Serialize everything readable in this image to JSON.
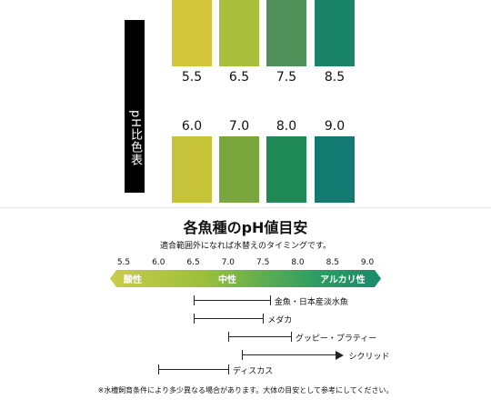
{
  "ph_chart": {
    "title": "pH比色表",
    "top_row": [
      {
        "label": "5.5",
        "color": "#d4c63a"
      },
      {
        "label": "6.5",
        "color": "#a9bf3b"
      },
      {
        "label": "7.5",
        "color": "#4f9058"
      },
      {
        "label": "8.5",
        "color": "#1a8468"
      }
    ],
    "bottom_row": [
      {
        "label": "6.0",
        "color": "#c6c23a"
      },
      {
        "label": "7.0",
        "color": "#7aa63e"
      },
      {
        "label": "8.0",
        "color": "#1f8a55"
      },
      {
        "label": "9.0",
        "color": "#137a72"
      }
    ]
  },
  "fish_section": {
    "title": "各魚種のpH値目安",
    "subtitle": "適合範囲外になれば水替えのタイミングです。",
    "scale": {
      "ticks": [
        "5.5",
        "6.0",
        "6.5",
        "7.0",
        "7.5",
        "8.0",
        "8.5",
        "9.0"
      ],
      "labels": {
        "acidic": "酸性",
        "neutral": "中性",
        "alkaline": "アルカリ性"
      },
      "gradient_colors": [
        "#c9cc4a",
        "#9bbf3c",
        "#2e9e63",
        "#1b8a6b"
      ]
    },
    "species": [
      {
        "name": "金魚・日本産淡水魚",
        "min": 6.5,
        "max": 7.6,
        "open_max": false
      },
      {
        "name": "メダカ",
        "min": 6.5,
        "max": 7.5,
        "open_max": false
      },
      {
        "name": "グッピー・プラティー",
        "min": 7.0,
        "max": 7.9,
        "open_max": false
      },
      {
        "name": "シクリッド",
        "min": 7.2,
        "max": 8.6,
        "open_max": true
      },
      {
        "name": "ディスカス",
        "min": 6.0,
        "max": 7.0,
        "open_max": false
      }
    ],
    "note": "※水槽飼育条件により多少異なる場合があります。大体の目安として参考にしてください。"
  }
}
